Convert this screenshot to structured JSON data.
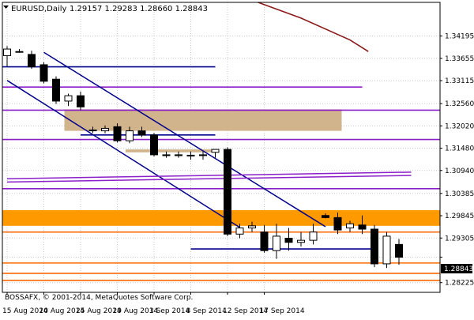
{
  "header": {
    "symbol": "EURUSD,Daily",
    "ohlc": "1.29157 1.29283 1.28660 1.28843"
  },
  "copyright": "BOSSAFX, © 2001-2014, MetaQuotes Software Corp.",
  "current_price_label": "1.28843",
  "colors": {
    "background": "#ffffff",
    "grid": "#c8c8c8",
    "frame": "#000000",
    "candle_outline": "#000000",
    "bull_body": "#ffffff",
    "bear_body": "#000000",
    "trend_navy": "#00008b",
    "purple_level": "#8b1fc8",
    "orange_level": "#ff6a00",
    "supply_zone": "#d2b48c",
    "demand_zone": "#ff9900",
    "moving_average": "#8b1a1a"
  },
  "chart_data": {
    "type": "candlestick",
    "symbol": "EURUSD",
    "timeframe": "Daily",
    "ylim": [
      1.2799,
      1.3501
    ],
    "y_ticks": [
      1.34195,
      1.33655,
      1.33115,
      1.3256,
      1.3202,
      1.3148,
      1.3094,
      1.30385,
      1.29845,
      1.29305,
      1.28843,
      1.28225
    ],
    "x_tick_labels": [
      "15 Aug 2014",
      "20 Aug 2014",
      "25 Aug 2014",
      "29 Aug 2014",
      "3 Sep 2014",
      "8 Sep 2014",
      "12 Sep 2014",
      "17 Sep 2014"
    ],
    "x_tick_bar_index": [
      0,
      3,
      6,
      9,
      12,
      15,
      18,
      21
    ],
    "grid": true,
    "candles": [
      {
        "o": 1.3372,
        "h": 1.3395,
        "l": 1.3345,
        "c": 1.3388
      },
      {
        "o": 1.3382,
        "h": 1.3388,
        "l": 1.3379,
        "c": 1.3382
      },
      {
        "o": 1.3375,
        "h": 1.3384,
        "l": 1.334,
        "c": 1.3345
      },
      {
        "o": 1.335,
        "h": 1.3356,
        "l": 1.3305,
        "c": 1.331
      },
      {
        "o": 1.3315,
        "h": 1.3322,
        "l": 1.3255,
        "c": 1.3262
      },
      {
        "o": 1.3262,
        "h": 1.328,
        "l": 1.325,
        "c": 1.3275
      },
      {
        "o": 1.3275,
        "h": 1.3285,
        "l": 1.324,
        "c": 1.3248
      },
      {
        "o": 1.319,
        "h": 1.32,
        "l": 1.3185,
        "c": 1.3192
      },
      {
        "o": 1.319,
        "h": 1.3203,
        "l": 1.3184,
        "c": 1.3196
      },
      {
        "o": 1.32,
        "h": 1.3208,
        "l": 1.3162,
        "c": 1.3166
      },
      {
        "o": 1.3166,
        "h": 1.32,
        "l": 1.316,
        "c": 1.319
      },
      {
        "o": 1.319,
        "h": 1.32,
        "l": 1.3175,
        "c": 1.318
      },
      {
        "o": 1.318,
        "h": 1.3185,
        "l": 1.3128,
        "c": 1.3132
      },
      {
        "o": 1.3132,
        "h": 1.314,
        "l": 1.3125,
        "c": 1.313
      },
      {
        "o": 1.313,
        "h": 1.314,
        "l": 1.3125,
        "c": 1.3132
      },
      {
        "o": 1.3131,
        "h": 1.314,
        "l": 1.312,
        "c": 1.313
      },
      {
        "o": 1.3131,
        "h": 1.314,
        "l": 1.312,
        "c": 1.3132
      },
      {
        "o": 1.3138,
        "h": 1.3145,
        "l": 1.3125,
        "c": 1.3145
      },
      {
        "o": 1.3145,
        "h": 1.315,
        "l": 1.2935,
        "c": 1.294
      },
      {
        "o": 1.294,
        "h": 1.2965,
        "l": 1.293,
        "c": 1.2955
      },
      {
        "o": 1.2955,
        "h": 1.297,
        "l": 1.2945,
        "c": 1.296
      },
      {
        "o": 1.2945,
        "h": 1.2962,
        "l": 1.2895,
        "c": 1.29
      },
      {
        "o": 1.29,
        "h": 1.2965,
        "l": 1.288,
        "c": 1.2935
      },
      {
        "o": 1.293,
        "h": 1.2955,
        "l": 1.29,
        "c": 1.292
      },
      {
        "o": 1.292,
        "h": 1.2945,
        "l": 1.291,
        "c": 1.2925
      },
      {
        "o": 1.2925,
        "h": 1.2965,
        "l": 1.2915,
        "c": 1.2945
      },
      {
        "o": 1.2985,
        "h": 1.299,
        "l": 1.2978,
        "c": 1.298
      },
      {
        "o": 1.298,
        "h": 1.2992,
        "l": 1.294,
        "c": 1.295
      },
      {
        "o": 1.2955,
        "h": 1.2972,
        "l": 1.2945,
        "c": 1.2965
      },
      {
        "o": 1.2962,
        "h": 1.2985,
        "l": 1.294,
        "c": 1.2952
      },
      {
        "o": 1.2952,
        "h": 1.2962,
        "l": 1.286,
        "c": 1.2868
      },
      {
        "o": 1.2868,
        "h": 1.2945,
        "l": 1.2858,
        "c": 1.2935
      },
      {
        "o": 1.2915,
        "h": 1.2928,
        "l": 1.2866,
        "c": 1.2884
      }
    ],
    "horizontal_levels": [
      {
        "price": 1.3345,
        "color": "navy",
        "from_bar": 0,
        "to_bar": 17
      },
      {
        "price": 1.3296,
        "color": "purple",
        "from_bar": 0,
        "to_bar": 29
      },
      {
        "price": 1.324,
        "color": "purple",
        "from_bar": 0,
        "to_bar": 33
      },
      {
        "price": 1.3169,
        "color": "purple",
        "from_bar": 0,
        "to_bar": 33
      },
      {
        "price": 1.305,
        "color": "purple",
        "from_bar": 0,
        "to_bar": 33
      },
      {
        "price": 1.318,
        "color": "navy",
        "from_bar": 6,
        "to_bar": 17
      },
      {
        "price": 1.2904,
        "color": "navy",
        "from_bar": 15,
        "to_bar": 30
      },
      {
        "price": 1.2945,
        "color": "orange",
        "from_bar": 0,
        "to_bar": 33
      },
      {
        "price": 1.287,
        "color": "orange",
        "from_bar": 0,
        "to_bar": 33
      },
      {
        "price": 1.2845,
        "color": "orange",
        "from_bar": 0,
        "to_bar": 33
      },
      {
        "price": 1.2828,
        "color": "orange",
        "from_bar": 0,
        "to_bar": 33
      }
    ],
    "zones": [
      {
        "top": 1.3242,
        "bottom": 1.319,
        "from_bar": 5,
        "to_bar": 27,
        "color": "tan"
      },
      {
        "top": 1.3145,
        "bottom": 1.3138,
        "from_bar": 10,
        "to_bar": 17,
        "color": "tan"
      },
      {
        "top": 1.2998,
        "bottom": 1.296,
        "from_bar": 0,
        "to_bar": 33,
        "color": "orange"
      }
    ],
    "trendlines": [
      {
        "p1": {
          "bar": 0,
          "price": 1.3312
        },
        "p2": {
          "bar": 19,
          "price": 1.2956
        },
        "color": "navy"
      },
      {
        "p1": {
          "bar": 3,
          "price": 1.338
        },
        "p2": {
          "bar": 26,
          "price": 1.2958
        },
        "color": "navy"
      },
      {
        "p1": {
          "bar": 0,
          "price": 1.3074
        },
        "p2": {
          "bar": 33,
          "price": 1.309
        },
        "color": "purple"
      },
      {
        "p1": {
          "bar": 0,
          "price": 1.3066
        },
        "p2": {
          "bar": 33,
          "price": 1.3082
        },
        "color": "purple"
      }
    ],
    "moving_average": {
      "color": "maroon",
      "points": [
        {
          "bar": 20.5,
          "price": 1.3501
        },
        {
          "bar": 24,
          "price": 1.3463
        },
        {
          "bar": 28,
          "price": 1.341
        },
        {
          "bar": 29.5,
          "price": 1.3382
        }
      ]
    }
  }
}
